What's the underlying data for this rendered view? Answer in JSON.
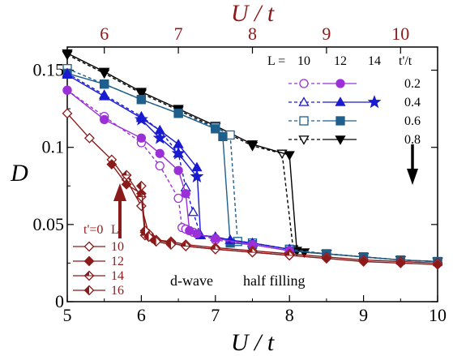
{
  "chart_data": {
    "type": "line",
    "xlabel": "U / t",
    "ylabel": "D",
    "top_xlabel": "U / t",
    "xlim": [
      5,
      10
    ],
    "ylim": [
      0,
      0.165
    ],
    "x_ticks": [
      "5",
      "6",
      "7",
      "8",
      "9",
      "10"
    ],
    "y_ticks": [
      "0",
      "0.05",
      "0.1",
      "0.15"
    ],
    "top_ticks": [
      "6",
      "7",
      "8",
      "9",
      "10"
    ],
    "top_tick_values": [
      5.5,
      6.5,
      7.5,
      8.5,
      9.5
    ],
    "colors": {
      "purple": "#9b30d9",
      "blue": "#1a1ad0",
      "teal": "#1e5f8c",
      "black": "#000000",
      "brown": "#8b1a1a"
    },
    "legend_top": {
      "header_L": "L =",
      "sizes": [
        "10",
        "12",
        "14"
      ],
      "header_tp": "t'/t",
      "rows": [
        "0.2",
        "0.4",
        "0.6",
        "0.8"
      ]
    },
    "legend_bottom": {
      "header_t": "t'=0",
      "header_L": "L",
      "rows": [
        "10",
        "12",
        "14",
        "16"
      ]
    },
    "annotations": {
      "dwave": "d-wave",
      "halffilling": "half filling"
    },
    "series": [
      {
        "name": "t'/t=0.8, L=10",
        "color": "#000000",
        "marker": "tri-down",
        "filled": false,
        "dash": true,
        "x": [
          5,
          5.5,
          6,
          6.5,
          7,
          7.5,
          7.9,
          8.05,
          8.2,
          8.5,
          9,
          9.5,
          10
        ],
        "y": [
          0.16,
          0.148,
          0.135,
          0.124,
          0.113,
          0.101,
          0.096,
          0.034,
          0.032,
          0.031,
          0.029,
          0.027,
          0.026
        ]
      },
      {
        "name": "t'/t=0.8, L=12",
        "color": "#000000",
        "marker": "tri-down",
        "filled": true,
        "dash": false,
        "x": [
          5,
          5.5,
          6,
          6.5,
          7,
          7.5,
          8,
          8.1,
          8.2,
          8.5,
          9,
          9.5,
          10
        ],
        "y": [
          0.161,
          0.149,
          0.136,
          0.125,
          0.114,
          0.102,
          0.095,
          0.033,
          0.032,
          0.031,
          0.029,
          0.027,
          0.026
        ]
      },
      {
        "name": "t'/t=0.6, L=10",
        "color": "#1e5f8c",
        "marker": "square",
        "filled": false,
        "dash": true,
        "x": [
          5,
          5.5,
          6,
          6.5,
          7,
          7.2,
          7.3,
          7.5,
          8,
          8.5,
          9,
          9.5,
          10
        ],
        "y": [
          0.151,
          0.141,
          0.131,
          0.122,
          0.113,
          0.108,
          0.039,
          0.038,
          0.034,
          0.031,
          0.029,
          0.027,
          0.026
        ]
      },
      {
        "name": "t'/t=0.6, L=12",
        "color": "#1e5f8c",
        "marker": "square",
        "filled": true,
        "dash": false,
        "x": [
          5,
          5.5,
          6,
          6.5,
          7,
          7.1,
          7.2,
          7.5,
          8,
          8.5,
          9,
          9.5,
          10
        ],
        "y": [
          0.148,
          0.141,
          0.131,
          0.122,
          0.112,
          0.107,
          0.038,
          0.037,
          0.033,
          0.031,
          0.029,
          0.027,
          0.026
        ]
      },
      {
        "name": "t'/t=0.4, L=10",
        "color": "#1a1ad0",
        "marker": "triangle",
        "filled": false,
        "dash": true,
        "x": [
          5,
          5.5,
          6,
          6.25,
          6.5,
          6.6,
          6.7,
          6.8,
          7,
          7.2,
          7.5,
          8
        ],
        "y": [
          0.148,
          0.134,
          0.12,
          0.111,
          0.096,
          0.074,
          0.058,
          0.043,
          0.042,
          0.04,
          0.038,
          0.034
        ]
      },
      {
        "name": "t'/t=0.4, L=12",
        "color": "#1a1ad0",
        "marker": "triangle",
        "filled": true,
        "dash": false,
        "x": [
          5,
          5.5,
          6,
          6.25,
          6.5,
          6.75,
          6.8,
          7,
          7.2,
          7.5,
          8
        ],
        "y": [
          0.147,
          0.133,
          0.119,
          0.111,
          0.102,
          0.087,
          0.043,
          0.042,
          0.04,
          0.038,
          0.034
        ]
      },
      {
        "name": "t'/t=0.4, L=14",
        "color": "#1a1ad0",
        "marker": "star",
        "filled": true,
        "dash": false,
        "x": [
          6,
          6.25,
          6.5,
          6.75
        ],
        "y": [
          0.118,
          0.106,
          0.096,
          0.081
        ]
      },
      {
        "name": "t'/t=0.2, L=10",
        "color": "#9b30d9",
        "marker": "circle",
        "filled": false,
        "dash": true,
        "x": [
          5,
          5.5,
          6,
          6.25,
          6.5,
          6.55,
          6.6,
          6.7,
          7,
          7.5,
          8
        ],
        "y": [
          0.137,
          0.12,
          0.103,
          0.088,
          0.067,
          0.048,
          0.047,
          0.045,
          0.04,
          0.037,
          0.033
        ]
      },
      {
        "name": "t'/t=0.2, L=12",
        "color": "#9b30d9",
        "marker": "circle",
        "filled": true,
        "dash": false,
        "x": [
          5,
          5.5,
          6,
          6.25,
          6.5,
          6.6,
          6.65,
          6.75,
          7,
          7.5,
          8
        ],
        "y": [
          0.137,
          0.118,
          0.106,
          0.096,
          0.085,
          0.07,
          0.046,
          0.044,
          0.041,
          0.037,
          0.033
        ]
      },
      {
        "name": "t'=0, L=10",
        "color": "#8b1a1a",
        "marker": "diamond",
        "filled": false,
        "dash": false,
        "x": [
          5,
          5.3,
          5.6,
          5.8,
          6,
          6.1,
          6.2,
          6.4,
          6.6,
          7,
          7.5,
          8,
          8.5,
          9,
          9.5,
          10
        ],
        "y": [
          0.122,
          0.106,
          0.092,
          0.079,
          0.062,
          0.044,
          0.04,
          0.039,
          0.037,
          0.035,
          0.033,
          0.031,
          0.029,
          0.027,
          0.026,
          0.025
        ]
      },
      {
        "name": "t'=0, L=12",
        "color": "#8b1a1a",
        "marker": "diamond",
        "filled": true,
        "dash": false,
        "x": [
          5.6,
          5.8,
          6,
          6.05,
          6.15,
          6.4,
          6.6,
          7,
          7.5,
          8,
          8.5,
          9,
          9.5,
          10
        ],
        "y": [
          0.089,
          0.076,
          0.07,
          0.045,
          0.041,
          0.038,
          0.036,
          0.034,
          0.032,
          0.03,
          0.028,
          0.026,
          0.025,
          0.024
        ]
      },
      {
        "name": "t'=0, L=14",
        "color": "#8b1a1a",
        "marker": "diamond-half",
        "filled": false,
        "dash": false,
        "x": [
          5.8,
          6,
          6.05,
          6.2,
          6.4,
          6.6,
          7,
          7.5,
          8
        ],
        "y": [
          0.082,
          0.068,
          0.043,
          0.04,
          0.038,
          0.036,
          0.034,
          0.032,
          0.03
        ]
      },
      {
        "name": "t'=0, L=16",
        "color": "#8b1a1a",
        "marker": "diamond-half",
        "filled": true,
        "dash": false,
        "x": [
          6,
          6.05,
          6.1,
          6.2,
          6.4
        ],
        "y": [
          0.075,
          0.046,
          0.042,
          0.039,
          0.037
        ]
      }
    ]
  }
}
